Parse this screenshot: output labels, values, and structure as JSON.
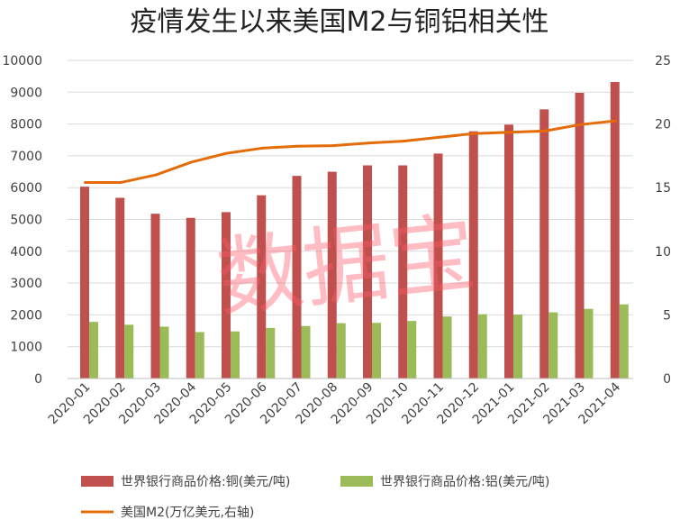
{
  "chart_data": {
    "type": "bar",
    "title": "疫情发生以来美国M2与铜铝相关性",
    "categories": [
      "2020-01",
      "2020-02",
      "2020-03",
      "2020-04",
      "2020-05",
      "2020-06",
      "2020-07",
      "2020-08",
      "2020-09",
      "2020-10",
      "2020-11",
      "2020-12",
      "2021-01",
      "2021-02",
      "2021-03",
      "2021-04"
    ],
    "left_axis": {
      "min": 0,
      "max": 10000,
      "step": 1000,
      "ticks": [
        "0",
        "1000",
        "2000",
        "3000",
        "4000",
        "5000",
        "6000",
        "7000",
        "8000",
        "9000",
        "10000"
      ]
    },
    "right_axis": {
      "min": 0,
      "max": 25,
      "step": 5,
      "ticks": [
        "0",
        "5",
        "10",
        "15",
        "20",
        "25"
      ]
    },
    "series": [
      {
        "name": "世界银行商品价格:铜(美元/吨)",
        "kind": "bar",
        "axis": "left",
        "color": "#c0504d",
        "values": [
          6030,
          5680,
          5180,
          5050,
          5230,
          5760,
          6370,
          6500,
          6700,
          6700,
          7070,
          7770,
          7980,
          8460,
          8980,
          9320
        ]
      },
      {
        "name": "世界银行商品价格:铝(美元/吨)",
        "kind": "bar",
        "axis": "left",
        "color": "#9bbb59",
        "values": [
          1780,
          1690,
          1630,
          1460,
          1480,
          1590,
          1650,
          1740,
          1750,
          1810,
          1950,
          2020,
          2010,
          2080,
          2190,
          2330
        ]
      },
      {
        "name": "美国M2(万亿美元,右轴)",
        "kind": "line",
        "axis": "right",
        "color": "#e36c09",
        "values": [
          15.4,
          15.4,
          16.0,
          17.0,
          17.7,
          18.1,
          18.25,
          18.3,
          18.5,
          18.65,
          18.95,
          19.25,
          19.35,
          19.45,
          19.95,
          20.25
        ]
      }
    ],
    "legend_position": "bottom",
    "grid": true
  },
  "watermark": "数据宝"
}
